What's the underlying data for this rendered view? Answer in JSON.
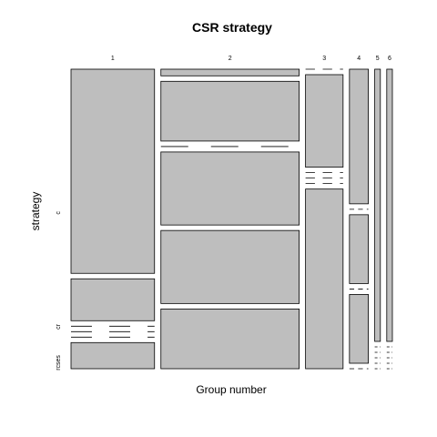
{
  "chart_data": {
    "type": "mosaic",
    "title": "CSR strategy",
    "xlabel": "Group number",
    "ylabel": "strategy",
    "groups": [
      {
        "label": "1",
        "width": 0.296,
        "segments": [
          0.75,
          0.154,
          0.0,
          0.0,
          0.0,
          0.096
        ]
      },
      {
        "label": "2",
        "width": 0.49,
        "segments": [
          0.03,
          0.27,
          0.0,
          0.33,
          0.33,
          0.27
        ]
      },
      {
        "label": "3",
        "width": 0.133,
        "segments": [
          0.0,
          0.34,
          0.0,
          0.0,
          0.0,
          0.66
        ]
      },
      {
        "label": "4",
        "width": 0.067,
        "segments": [
          0.45,
          0.0,
          0.23,
          0.0,
          0.23,
          0.0
        ]
      },
      {
        "label": "5",
        "width": 0.02,
        "segments": [
          1.0,
          0.0,
          0.0,
          0.0,
          0.0,
          0.0
        ]
      },
      {
        "label": "6",
        "width": 0.02,
        "segments": [
          0.82,
          0.0,
          0.0,
          0.0,
          0.0,
          0.0
        ]
      }
    ],
    "y_tick_labels": [
      {
        "label": "c",
        "position": 0.52
      },
      {
        "label": "cr",
        "position": 0.14
      },
      {
        "label": "rcses",
        "position": 0.02
      }
    ],
    "fill_color": "#bebebe",
    "stroke_color": "#000000"
  }
}
